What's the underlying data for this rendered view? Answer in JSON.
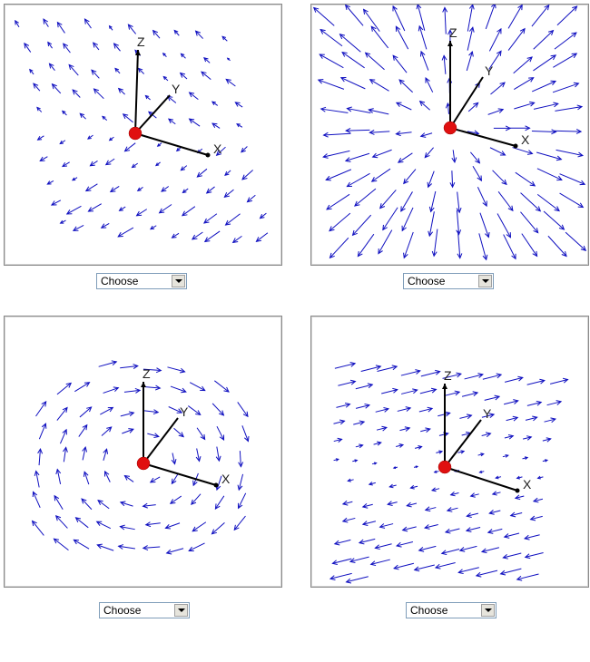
{
  "panels": [
    {
      "id": "p1",
      "field": "curl",
      "select_value": "Choose"
    },
    {
      "id": "p2",
      "field": "radial",
      "select_value": "Choose"
    },
    {
      "id": "p3",
      "field": "rotation",
      "select_value": "Choose"
    },
    {
      "id": "p4",
      "field": "shear",
      "select_value": "Choose"
    }
  ],
  "axes": {
    "x": "X",
    "y": "Y",
    "z": "Z"
  },
  "colors": {
    "arrow": "#1010c0",
    "axis": "#000000",
    "origin": "#e01010"
  }
}
